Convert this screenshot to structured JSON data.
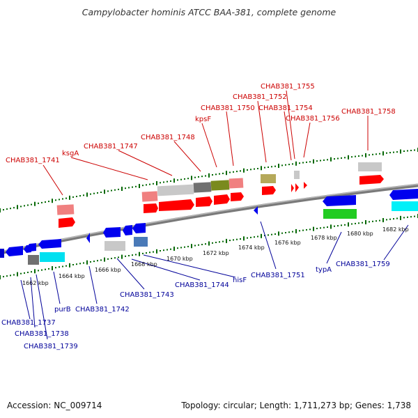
{
  "title": "Campylobacter hominis ATCC BAA-381, complete genome",
  "footer": {
    "accession": "Accession: NC_009714",
    "summary": "Topology: circular; Length: 1,711,273 bp; Genes: 1,738"
  },
  "colors": {
    "forward_label": "#cc0000",
    "reverse_label": "#000099",
    "tick": "#006600",
    "backbone": "#888888"
  },
  "scale_ticks": [
    "1662 kbp",
    "1664 kbp",
    "1666 kbp",
    "1668 kbp",
    "1670 kbp",
    "1672 kbp",
    "1674 kbp",
    "1676 kbp",
    "1678 kbp",
    "1680 kbp",
    "1682 kbp"
  ],
  "forward_labels": [
    "CHAB381_1741",
    "ksgA",
    "CHAB381_1747",
    "CHAB381_1748",
    "kpsF",
    "CHAB381_1750",
    "CHAB381_1752",
    "CHAB381_1754",
    "CHAB381_1755",
    "CHAB381_1756",
    "CHAB381_1758"
  ],
  "reverse_labels": [
    "CHAB381_1737",
    "CHAB381_1738",
    "CHAB381_1739",
    "purB",
    "CHAB381_1742",
    "CHAB381_1743",
    "CHAB381_1744",
    "hisF",
    "CHAB381_1751",
    "typA",
    "CHAB381_1759"
  ]
}
